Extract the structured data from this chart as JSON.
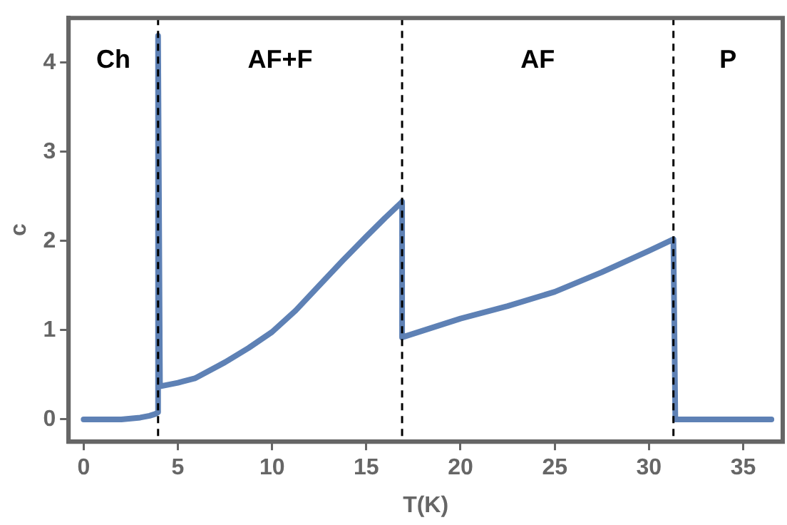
{
  "chart_data": {
    "type": "line",
    "xlabel": "T(K)",
    "ylabel": "c",
    "xlim": [
      -0.8,
      37.1
    ],
    "ylim": [
      -0.25,
      4.5
    ],
    "xticks": [
      0,
      5,
      10,
      15,
      20,
      25,
      30,
      35
    ],
    "yticks": [
      0,
      1,
      2,
      3,
      4
    ],
    "grid": false,
    "legend": false,
    "marker": "none",
    "line_style": "solid",
    "series": [
      {
        "color": "#5e81b5",
        "x": [
          0,
          1,
          2,
          2.5,
          3,
          3.5,
          3.8,
          3.95,
          3.95,
          4.05,
          5,
          5.9,
          7.5,
          8.75,
          10,
          11.25,
          12.5,
          13.75,
          15,
          16,
          16.9,
          16.9,
          20,
          22.5,
          25,
          27.5,
          30,
          31.3,
          31.4,
          36.5
        ],
        "values": [
          0,
          0,
          0,
          0.01,
          0.02,
          0.04,
          0.06,
          0.08,
          4.3,
          0.37,
          0.41,
          0.46,
          0.64,
          0.8,
          0.98,
          1.22,
          1.5,
          1.78,
          2.05,
          2.26,
          2.44,
          0.92,
          1.13,
          1.27,
          1.43,
          1.65,
          1.89,
          2.02,
          0,
          0
        ]
      }
    ],
    "ref_lines": [
      {
        "axis": "x",
        "value": 3.95,
        "color": "#000000",
        "line_style": "dashed"
      },
      {
        "axis": "x",
        "value": 16.9,
        "color": "#000000",
        "line_style": "dashed"
      },
      {
        "axis": "x",
        "value": 31.3,
        "color": "#000000",
        "line_style": "dashed"
      }
    ],
    "annotations": [
      "Ch",
      "AF+F",
      "AF",
      "P"
    ]
  }
}
